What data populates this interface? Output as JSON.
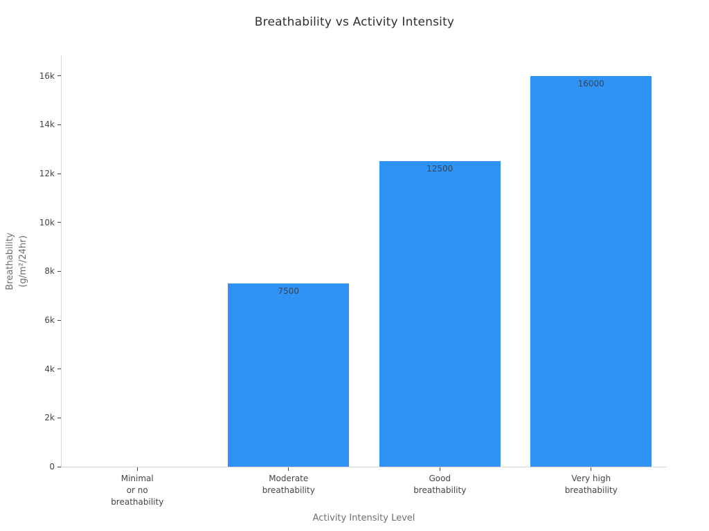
{
  "chart": {
    "title": "Breathability vs Activity Intensity",
    "xlabel": "Activity Intensity Level",
    "ylabel_line1": "Breathability",
    "ylabel_line2": "(g/m²/24hr)"
  },
  "chart_data": {
    "type": "bar",
    "title": "Breathability vs Activity Intensity",
    "xlabel": "Activity Intensity Level",
    "ylabel": "Breathability (g/m²/24hr)",
    "categories": [
      "Minimal\nor no\nbreathability",
      "Moderate\nbreathability",
      "Good\nbreathability",
      "Very high\nbreathability"
    ],
    "values": [
      0,
      7500,
      12500,
      16000
    ],
    "bar_labels": [
      "",
      "7500",
      "12500",
      "16000"
    ],
    "ytick_values": [
      0,
      2000,
      4000,
      6000,
      8000,
      10000,
      12000,
      14000,
      16000
    ],
    "ytick_labels": [
      "0",
      "2k",
      "4k",
      "6k",
      "8k",
      "10k",
      "12k",
      "14k",
      "16k"
    ],
    "ylim": [
      0,
      16842
    ],
    "grid": false,
    "legend": false,
    "colors": {
      "bar": "#2e93f5",
      "bar_label_text": "#35455a",
      "title_text": "#2f2f2f",
      "tick_text": "#444444",
      "axis_title_text": "#6e6e6e",
      "axis_line": "#d6d6d6"
    }
  }
}
